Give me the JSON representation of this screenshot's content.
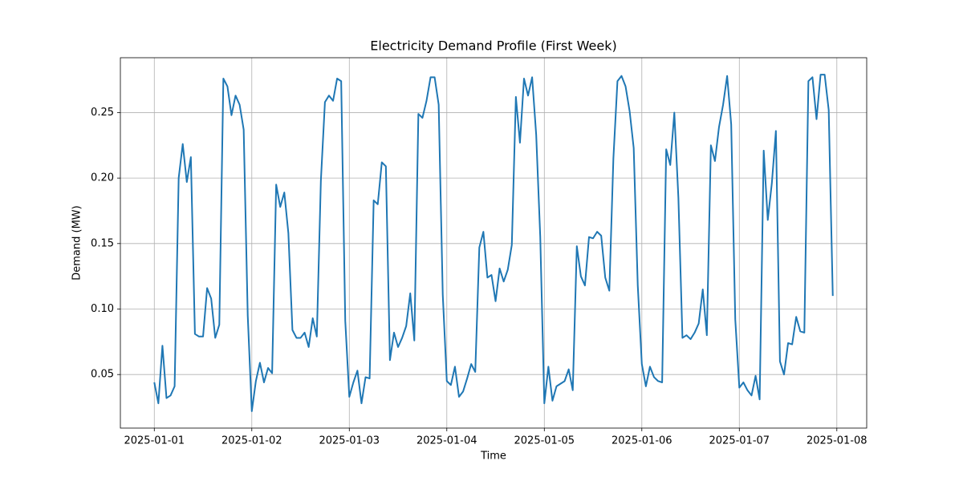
{
  "chart_data": {
    "type": "line",
    "title": "Electricity Demand Profile (First Week)",
    "xlabel": "Time",
    "ylabel": "Demand (MW)",
    "color": "#1f77b4",
    "grid": true,
    "x": [
      "2025-01-01T00:00",
      "2025-01-01T01:00",
      "2025-01-01T02:00",
      "2025-01-01T03:00",
      "2025-01-01T04:00",
      "2025-01-01T05:00",
      "2025-01-01T06:00",
      "2025-01-01T07:00",
      "2025-01-01T08:00",
      "2025-01-01T09:00",
      "2025-01-01T10:00",
      "2025-01-01T11:00",
      "2025-01-01T12:00",
      "2025-01-01T13:00",
      "2025-01-01T14:00",
      "2025-01-01T15:00",
      "2025-01-01T16:00",
      "2025-01-01T17:00",
      "2025-01-01T18:00",
      "2025-01-01T19:00",
      "2025-01-01T20:00",
      "2025-01-01T21:00",
      "2025-01-01T22:00",
      "2025-01-01T23:00",
      "2025-01-02T00:00",
      "2025-01-02T01:00",
      "2025-01-02T02:00",
      "2025-01-02T03:00",
      "2025-01-02T04:00",
      "2025-01-02T05:00",
      "2025-01-02T06:00",
      "2025-01-02T07:00",
      "2025-01-02T08:00",
      "2025-01-02T09:00",
      "2025-01-02T10:00",
      "2025-01-02T11:00",
      "2025-01-02T12:00",
      "2025-01-02T13:00",
      "2025-01-02T14:00",
      "2025-01-02T15:00",
      "2025-01-02T16:00",
      "2025-01-02T17:00",
      "2025-01-02T18:00",
      "2025-01-02T19:00",
      "2025-01-02T20:00",
      "2025-01-02T21:00",
      "2025-01-02T22:00",
      "2025-01-02T23:00",
      "2025-01-03T00:00",
      "2025-01-03T01:00",
      "2025-01-03T02:00",
      "2025-01-03T03:00",
      "2025-01-03T04:00",
      "2025-01-03T05:00",
      "2025-01-03T06:00",
      "2025-01-03T07:00",
      "2025-01-03T08:00",
      "2025-01-03T09:00",
      "2025-01-03T10:00",
      "2025-01-03T11:00",
      "2025-01-03T12:00",
      "2025-01-03T13:00",
      "2025-01-03T14:00",
      "2025-01-03T15:00",
      "2025-01-03T16:00",
      "2025-01-03T17:00",
      "2025-01-03T18:00",
      "2025-01-03T19:00",
      "2025-01-03T20:00",
      "2025-01-03T21:00",
      "2025-01-03T22:00",
      "2025-01-03T23:00",
      "2025-01-04T00:00",
      "2025-01-04T01:00",
      "2025-01-04T02:00",
      "2025-01-04T03:00",
      "2025-01-04T04:00",
      "2025-01-04T05:00",
      "2025-01-04T06:00",
      "2025-01-04T07:00",
      "2025-01-04T08:00",
      "2025-01-04T09:00",
      "2025-01-04T10:00",
      "2025-01-04T11:00",
      "2025-01-04T12:00",
      "2025-01-04T13:00",
      "2025-01-04T14:00",
      "2025-01-04T15:00",
      "2025-01-04T16:00",
      "2025-01-04T17:00",
      "2025-01-04T18:00",
      "2025-01-04T19:00",
      "2025-01-04T20:00",
      "2025-01-04T21:00",
      "2025-01-04T22:00",
      "2025-01-04T23:00",
      "2025-01-05T00:00",
      "2025-01-05T01:00",
      "2025-01-05T02:00",
      "2025-01-05T03:00",
      "2025-01-05T04:00",
      "2025-01-05T05:00",
      "2025-01-05T06:00",
      "2025-01-05T07:00",
      "2025-01-05T08:00",
      "2025-01-05T09:00",
      "2025-01-05T10:00",
      "2025-01-05T11:00",
      "2025-01-05T12:00",
      "2025-01-05T13:00",
      "2025-01-05T14:00",
      "2025-01-05T15:00",
      "2025-01-05T16:00",
      "2025-01-05T17:00",
      "2025-01-05T18:00",
      "2025-01-05T19:00",
      "2025-01-05T20:00",
      "2025-01-05T21:00",
      "2025-01-05T22:00",
      "2025-01-05T23:00",
      "2025-01-06T00:00",
      "2025-01-06T01:00",
      "2025-01-06T02:00",
      "2025-01-06T03:00",
      "2025-01-06T04:00",
      "2025-01-06T05:00",
      "2025-01-06T06:00",
      "2025-01-06T07:00",
      "2025-01-06T08:00",
      "2025-01-06T09:00",
      "2025-01-06T10:00",
      "2025-01-06T11:00",
      "2025-01-06T12:00",
      "2025-01-06T13:00",
      "2025-01-06T14:00",
      "2025-01-06T15:00",
      "2025-01-06T16:00",
      "2025-01-06T17:00",
      "2025-01-06T18:00",
      "2025-01-06T19:00",
      "2025-01-06T20:00",
      "2025-01-06T21:00",
      "2025-01-06T22:00",
      "2025-01-06T23:00",
      "2025-01-07T00:00",
      "2025-01-07T01:00",
      "2025-01-07T02:00",
      "2025-01-07T03:00",
      "2025-01-07T04:00",
      "2025-01-07T05:00",
      "2025-01-07T06:00",
      "2025-01-07T07:00",
      "2025-01-07T08:00",
      "2025-01-07T09:00",
      "2025-01-07T10:00",
      "2025-01-07T11:00",
      "2025-01-07T12:00",
      "2025-01-07T13:00",
      "2025-01-07T14:00",
      "2025-01-07T15:00",
      "2025-01-07T16:00",
      "2025-01-07T17:00",
      "2025-01-07T18:00",
      "2025-01-07T19:00",
      "2025-01-07T20:00",
      "2025-01-07T21:00",
      "2025-01-07T22:00",
      "2025-01-07T23:00"
    ],
    "values": [
      0.044,
      0.028,
      0.072,
      0.032,
      0.034,
      0.041,
      0.2,
      0.226,
      0.197,
      0.216,
      0.081,
      0.079,
      0.079,
      0.116,
      0.108,
      0.078,
      0.088,
      0.276,
      0.27,
      0.248,
      0.263,
      0.256,
      0.237,
      0.095,
      0.022,
      0.045,
      0.059,
      0.044,
      0.055,
      0.051,
      0.195,
      0.178,
      0.189,
      0.158,
      0.084,
      0.078,
      0.078,
      0.082,
      0.071,
      0.093,
      0.079,
      0.198,
      0.258,
      0.263,
      0.259,
      0.276,
      0.274,
      0.091,
      0.033,
      0.044,
      0.053,
      0.028,
      0.048,
      0.047,
      0.183,
      0.18,
      0.212,
      0.209,
      0.061,
      0.082,
      0.071,
      0.078,
      0.087,
      0.112,
      0.076,
      0.249,
      0.246,
      0.259,
      0.277,
      0.277,
      0.256,
      0.111,
      0.045,
      0.042,
      0.056,
      0.033,
      0.037,
      0.047,
      0.058,
      0.052,
      0.147,
      0.159,
      0.124,
      0.126,
      0.106,
      0.131,
      0.121,
      0.13,
      0.149,
      0.262,
      0.227,
      0.276,
      0.263,
      0.277,
      0.233,
      0.155,
      0.028,
      0.056,
      0.03,
      0.041,
      0.043,
      0.045,
      0.054,
      0.038,
      0.148,
      0.125,
      0.118,
      0.155,
      0.154,
      0.159,
      0.156,
      0.124,
      0.114,
      0.215,
      0.274,
      0.278,
      0.27,
      0.251,
      0.223,
      0.118,
      0.058,
      0.041,
      0.056,
      0.048,
      0.045,
      0.044,
      0.222,
      0.21,
      0.25,
      0.185,
      0.078,
      0.08,
      0.077,
      0.082,
      0.089,
      0.115,
      0.08,
      0.225,
      0.213,
      0.239,
      0.256,
      0.278,
      0.241,
      0.092,
      0.04,
      0.044,
      0.038,
      0.034,
      0.049,
      0.031,
      0.221,
      0.168,
      0.196,
      0.236,
      0.06,
      0.05,
      0.074,
      0.073,
      0.094,
      0.083,
      0.082,
      0.274,
      0.277,
      0.245,
      0.279,
      0.279,
      0.252,
      0.11
    ],
    "xlim": [
      "2024-12-31T15:39",
      "2025-01-08T07:21"
    ],
    "xticks": [
      "2025-01-01",
      "2025-01-02",
      "2025-01-03",
      "2025-01-04",
      "2025-01-05",
      "2025-01-06",
      "2025-01-07",
      "2025-01-08"
    ],
    "ylim": [
      0.0091,
      0.2919
    ],
    "yticks": [
      {
        "value": 0.05,
        "label": "0.05"
      },
      {
        "value": 0.1,
        "label": "0.10"
      },
      {
        "value": 0.15,
        "label": "0.15"
      },
      {
        "value": 0.2,
        "label": "0.20"
      },
      {
        "value": 0.25,
        "label": "0.25"
      }
    ]
  }
}
